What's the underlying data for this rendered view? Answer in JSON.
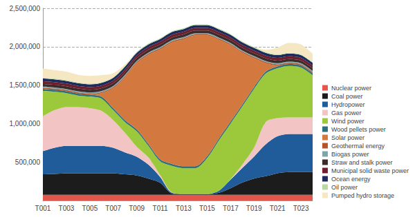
{
  "chart_data": {
    "type": "area",
    "stacked": true,
    "grid": true,
    "legend": "right",
    "categories": [
      "T001",
      null,
      "T003",
      null,
      "T005",
      null,
      "T007",
      null,
      "T009",
      null,
      "T011",
      null,
      "T013",
      null,
      "T015",
      null,
      "T017",
      null,
      "T019",
      null,
      "T021",
      null,
      "T023",
      null
    ],
    "ylim": [
      0,
      2500000
    ],
    "yticks": [
      {
        "value": 500000,
        "label": "500,000"
      },
      {
        "value": 1000000,
        "label": "1,000,000"
      },
      {
        "value": 1500000,
        "label": "1,500,000"
      },
      {
        "value": 2000000,
        "label": "2,000,000"
      },
      {
        "value": 2500000,
        "label": "2,500,000"
      }
    ],
    "series": [
      {
        "name": "Nuclear power",
        "color": "#e2574c",
        "values": [
          75000,
          75000,
          75000,
          75000,
          75000,
          75000,
          75000,
          75000,
          75000,
          75000,
          75000,
          75000,
          75000,
          75000,
          75000,
          75000,
          75000,
          75000,
          75000,
          75000,
          75000,
          75000,
          75000,
          75000
        ]
      },
      {
        "name": "Coal power",
        "color": "#1c1c1c",
        "values": [
          265000,
          270000,
          280000,
          280000,
          280000,
          280000,
          280000,
          265000,
          250000,
          210000,
          155000,
          15000,
          5000,
          5000,
          5000,
          25000,
          85000,
          157000,
          210000,
          240000,
          280000,
          295000,
          295000,
          295000
        ]
      },
      {
        "name": "Hydropower",
        "color": "#1f5c99",
        "values": [
          300000,
          340000,
          355000,
          355000,
          355000,
          355000,
          330000,
          285000,
          245000,
          180000,
          75000,
          10000,
          5000,
          5000,
          5000,
          25000,
          110000,
          190000,
          285000,
          415000,
          480000,
          495000,
          495000,
          495000
        ]
      },
      {
        "name": "Gas power",
        "color": "#f2c4c4",
        "values": [
          455000,
          490000,
          505000,
          505000,
          490000,
          455000,
          360000,
          255000,
          130000,
          95000,
          25000,
          5000,
          0,
          0,
          0,
          0,
          5000,
          45000,
          115000,
          290000,
          235000,
          215000,
          215000,
          215000
        ]
      },
      {
        "name": "Wind power",
        "color": "#9cc93b",
        "values": [
          330000,
          240000,
          180000,
          150000,
          150000,
          160000,
          130000,
          140000,
          200000,
          150000,
          180000,
          345000,
          335000,
          335000,
          465000,
          655000,
          725000,
          755000,
          765000,
          630000,
          650000,
          670000,
          650000,
          550000
        ]
      },
      {
        "name": "Wood pellets power",
        "color": "#2f6f7a",
        "values": [
          25000,
          25000,
          25000,
          25000,
          25000,
          25000,
          25000,
          25000,
          25000,
          25000,
          25000,
          25000,
          25000,
          25000,
          25000,
          25000,
          25000,
          25000,
          25000,
          25000,
          25000,
          25000,
          25000,
          25000
        ]
      },
      {
        "name": "Solar power",
        "color": "#d3793f",
        "values": [
          0,
          0,
          0,
          0,
          0,
          45000,
          260000,
          560000,
          860000,
          1160000,
          1430000,
          1580000,
          1650000,
          1700000,
          1570000,
          1285000,
          995000,
          675000,
          375000,
          110000,
          10000,
          0,
          0,
          0
        ]
      },
      {
        "name": "Geothermal energy",
        "color": "#b5542a",
        "values": [
          15000,
          15000,
          15000,
          15000,
          15000,
          15000,
          15000,
          15000,
          15000,
          15000,
          15000,
          15000,
          15000,
          15000,
          15000,
          15000,
          15000,
          15000,
          15000,
          15000,
          15000,
          15000,
          15000,
          15000
        ]
      },
      {
        "name": "Biogas power",
        "color": "#7fa5a8",
        "values": [
          15000,
          15000,
          15000,
          15000,
          15000,
          15000,
          15000,
          15000,
          15000,
          15000,
          15000,
          15000,
          15000,
          15000,
          15000,
          15000,
          15000,
          15000,
          15000,
          15000,
          15000,
          15000,
          15000,
          15000
        ]
      },
      {
        "name": "Straw and stalk power",
        "color": "#3b2b2b",
        "values": [
          35000,
          35000,
          35000,
          35000,
          35000,
          35000,
          35000,
          35000,
          35000,
          35000,
          35000,
          35000,
          35000,
          35000,
          35000,
          35000,
          35000,
          35000,
          35000,
          35000,
          35000,
          35000,
          35000,
          35000
        ]
      },
      {
        "name": "Municipal solid waste power",
        "color": "#6e1f2e",
        "values": [
          35000,
          35000,
          35000,
          35000,
          35000,
          35000,
          35000,
          35000,
          35000,
          35000,
          35000,
          35000,
          35000,
          35000,
          35000,
          35000,
          35000,
          35000,
          35000,
          35000,
          35000,
          35000,
          35000,
          35000
        ]
      },
      {
        "name": "Ocean energy",
        "color": "#1d2b5c",
        "values": [
          35000,
          35000,
          35000,
          35000,
          35000,
          35000,
          35000,
          35000,
          35000,
          35000,
          35000,
          35000,
          35000,
          35000,
          35000,
          35000,
          35000,
          35000,
          35000,
          35000,
          35000,
          35000,
          35000,
          35000
        ]
      },
      {
        "name": "Oil power",
        "color": "#b9d8a3",
        "values": [
          10000,
          10000,
          10000,
          10000,
          10000,
          10000,
          10000,
          10000,
          10000,
          10000,
          10000,
          10000,
          10000,
          10000,
          10000,
          10000,
          10000,
          10000,
          10000,
          10000,
          10000,
          10000,
          10000,
          10000
        ]
      },
      {
        "name": "Pumped hydro storage",
        "color": "#f6e7c3",
        "values": [
          120000,
          110000,
          110000,
          100000,
          100000,
          90000,
          50000,
          20000,
          0,
          0,
          0,
          0,
          0,
          0,
          0,
          0,
          0,
          0,
          0,
          30000,
          90000,
          130000,
          130000,
          110000
        ]
      }
    ]
  }
}
